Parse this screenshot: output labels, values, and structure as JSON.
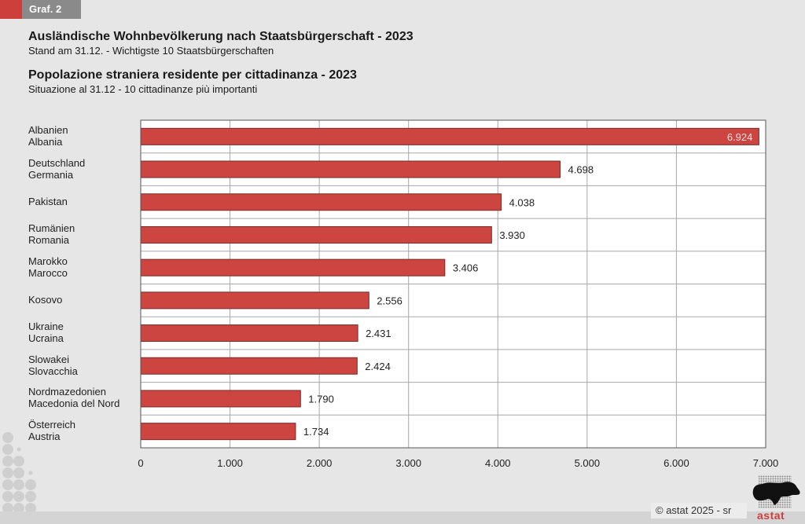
{
  "header": {
    "tab_label": "Graf. 2",
    "title_de": "Ausländische Wohnbevölkerung nach Staatsbürgerschaft - 2023",
    "subtitle_de": "Stand am 31.12. - Wichtigste 10 Staatsbürgerschaften",
    "title_it": "Popolazione straniera residente per cittadinanza - 2023",
    "subtitle_it": "Situazione al 31.12 - 10 cittadinanze più importanti"
  },
  "footer": {
    "copyright": "©  astat 2025 - sr",
    "logo_text": "astat"
  },
  "colors": {
    "bar": "#cc4540",
    "bar_border": "#7a2a27",
    "accent": "#cc3f3a",
    "grid": "#a8a8a8"
  },
  "chart_data": {
    "type": "bar",
    "orientation": "horizontal",
    "title": "Ausländische Wohnbevölkerung nach Staatsbürgerschaft - 2023",
    "categories": [
      [
        "Albanien",
        "Albania"
      ],
      [
        "Deutschland",
        "Germania"
      ],
      [
        "Pakistan"
      ],
      [
        "Rumänien",
        "Romania"
      ],
      [
        "Marokko",
        "Marocco"
      ],
      [
        "Kosovo"
      ],
      [
        "Ukraine",
        "Ucraina"
      ],
      [
        "Slowakei",
        "Slovacchia"
      ],
      [
        "Nordmazedonien",
        "Macedonia del Nord"
      ],
      [
        "Österreich",
        "Austria"
      ]
    ],
    "values": [
      6924,
      4698,
      4038,
      3930,
      3406,
      2556,
      2431,
      2424,
      1790,
      1734
    ],
    "value_labels": [
      "6.924",
      "4.698",
      "4.038",
      "3.930",
      "3.406",
      "2.556",
      "2.431",
      "2.424",
      "1.790",
      "1.734"
    ],
    "xlim": [
      0,
      7000
    ],
    "xticks": [
      0,
      1000,
      2000,
      3000,
      4000,
      5000,
      6000,
      7000
    ],
    "xtick_labels": [
      "0",
      "1.000",
      "2.000",
      "3.000",
      "4.000",
      "5.000",
      "6.000",
      "7.000"
    ],
    "xlabel": "",
    "ylabel": "",
    "grid": true
  }
}
